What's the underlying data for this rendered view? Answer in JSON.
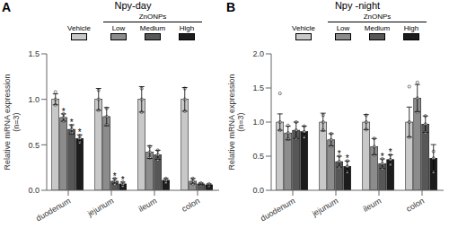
{
  "chart_data": [
    {
      "type": "bar",
      "title": "Npy-day",
      "ylabel": "Relative mRNA expression\n(n=3)",
      "categories": [
        "duodenum",
        "jejunum",
        "ileum",
        "colon"
      ],
      "series": [
        {
          "name": "Vehicle",
          "color": "#c8c8c8",
          "values": [
            1.0,
            1.0,
            1.0,
            1.0
          ],
          "errors": [
            0.06,
            0.12,
            0.14,
            0.13
          ],
          "points": [
            [
              0.94,
              1.0,
              1.08
            ],
            [
              0.88,
              1.0,
              1.1
            ],
            [
              0.86,
              1.0,
              1.12
            ],
            [
              0.87,
              1.0,
              1.12
            ]
          ]
        },
        {
          "name": "Low",
          "color": "#8c8c8c",
          "values": [
            0.8,
            0.81,
            0.42,
            0.1
          ],
          "errors": [
            0.04,
            0.1,
            0.07,
            0.03
          ],
          "points": [
            [
              0.76,
              0.8,
              0.84
            ],
            [
              0.72,
              0.81,
              0.9
            ],
            [
              0.36,
              0.42,
              0.48
            ],
            [
              0.07,
              0.1,
              0.13
            ]
          ]
        },
        {
          "name": "Medium",
          "color": "#575757",
          "values": [
            0.67,
            0.1,
            0.39,
            0.07
          ],
          "errors": [
            0.05,
            0.03,
            0.05,
            0.01
          ],
          "points": [
            [
              0.63,
              0.67,
              0.71
            ],
            [
              0.07,
              0.1,
              0.13
            ],
            [
              0.34,
              0.39,
              0.44
            ],
            [
              0.06,
              0.07,
              0.08
            ]
          ]
        },
        {
          "name": "High",
          "color": "#1c1c1c",
          "values": [
            0.57,
            0.07,
            0.11,
            0.06
          ],
          "errors": [
            0.04,
            0.02,
            0.02,
            0.01
          ],
          "points": [
            [
              0.53,
              0.57,
              0.6
            ],
            [
              0.05,
              0.07,
              0.09
            ],
            [
              0.09,
              0.11,
              0.13
            ],
            [
              0.05,
              0.06,
              0.07
            ]
          ]
        }
      ],
      "ylim": [
        0,
        1.5
      ],
      "yticks": [
        {
          "value": 0,
          "label": "0.0"
        },
        0.5,
        {
          "value": 1,
          "label": "1.0"
        },
        1.5
      ],
      "grid": false,
      "legend": "top",
      "marker": "circle",
      "annotations": [
        {
          "text": "A"
        },
        {
          "text": "ZnONPs",
          "series": [
            "Low",
            "Medium",
            "High"
          ]
        },
        {
          "text": "*",
          "category": "duodenum",
          "series": "Low"
        },
        {
          "text": "*",
          "category": "duodenum",
          "series": "Medium"
        },
        {
          "text": "*",
          "category": "duodenum",
          "series": "High"
        },
        {
          "text": "*",
          "category": "jejunum",
          "series": "Medium"
        },
        {
          "text": "*",
          "category": "jejunum",
          "series": "High"
        }
      ]
    },
    {
      "type": "bar",
      "title": "Npy -night",
      "ylabel": "Relative mRNA expression\n(n=3)",
      "categories": [
        "duodenum",
        "jejunum",
        "ileum",
        "colon"
      ],
      "series": [
        {
          "name": "Vehicle",
          "color": "#c8c8c8",
          "values": [
            1.0,
            1.0,
            1.0,
            1.0
          ],
          "errors": [
            0.12,
            0.13,
            0.11,
            0.22
          ],
          "points": [
            [
              0.88,
              1.0,
              1.42
            ],
            [
              0.88,
              1.0,
              1.1
            ],
            [
              0.89,
              1.0,
              1.1
            ],
            [
              0.78,
              1.0,
              1.52
            ]
          ]
        },
        {
          "name": "Low",
          "color": "#8c8c8c",
          "values": [
            0.84,
            0.74,
            0.64,
            1.35
          ],
          "errors": [
            0.1,
            0.09,
            0.12,
            0.2
          ],
          "points": [
            [
              0.75,
              0.84,
              0.95
            ],
            [
              0.65,
              0.74,
              0.83
            ],
            [
              0.52,
              0.64,
              0.76
            ],
            [
              1.15,
              1.35,
              1.58
            ]
          ]
        },
        {
          "name": "Medium",
          "color": "#575757",
          "values": [
            0.88,
            0.42,
            0.39,
            0.97
          ],
          "errors": [
            0.12,
            0.08,
            0.07,
            0.12
          ],
          "points": [
            [
              0.76,
              0.88,
              1.0
            ],
            [
              0.34,
              0.42,
              0.5
            ],
            [
              0.32,
              0.39,
              0.46
            ],
            [
              0.85,
              0.97,
              1.09
            ]
          ]
        },
        {
          "name": "High",
          "color": "#1c1c1c",
          "values": [
            0.86,
            0.35,
            0.45,
            0.47
          ],
          "errors": [
            0.08,
            0.08,
            0.07,
            0.2
          ],
          "points": [
            [
              0.78,
              0.86,
              0.94
            ],
            [
              0.27,
              0.35,
              0.43
            ],
            [
              0.38,
              0.45,
              0.52
            ],
            [
              0.27,
              0.47,
              0.57
            ]
          ]
        }
      ],
      "ylim": [
        0,
        2.0
      ],
      "yticks": [
        {
          "value": 0,
          "label": "0.0"
        },
        0.5,
        {
          "value": 1,
          "label": "1.0"
        },
        1.5,
        {
          "value": 2,
          "label": "2.0"
        }
      ],
      "grid": false,
      "legend": "top",
      "marker": "circle",
      "annotations": [
        {
          "text": "B"
        },
        {
          "text": "ZnONPs",
          "series": [
            "Low",
            "Medium",
            "High"
          ]
        },
        {
          "text": "*",
          "category": "jejunum",
          "series": "Medium"
        },
        {
          "text": "*",
          "category": "jejunum",
          "series": "High"
        },
        {
          "text": "*",
          "category": "ileum",
          "series": "Medium"
        },
        {
          "text": "*",
          "category": "ileum",
          "series": "High"
        }
      ]
    }
  ]
}
